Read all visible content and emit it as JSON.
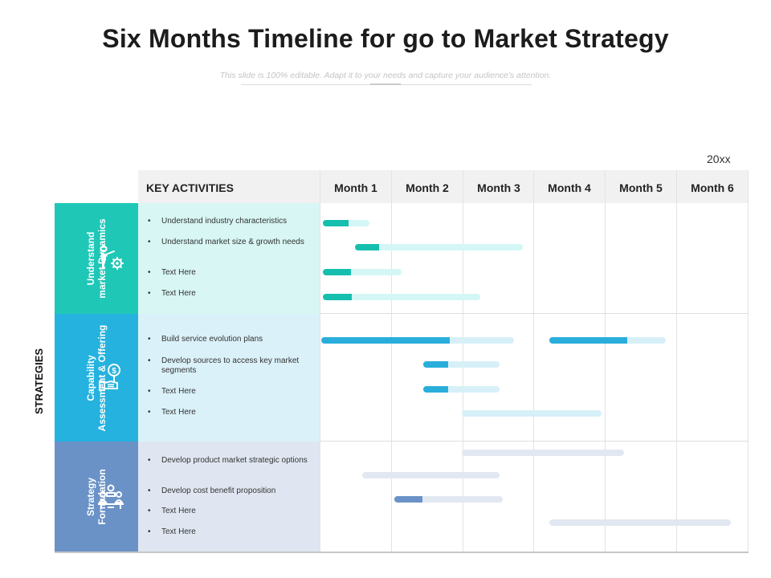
{
  "title": "Six Months Timeline for go to Market Strategy",
  "subtitle": "This slide is 100% editable. Adapt it to your needs and capture your audience's attention.",
  "year": "20xx",
  "side_label": "STRATEGIES",
  "header": {
    "key": "KEY ACTIVITIES",
    "months": [
      "Month 1",
      "Month 2",
      "Month 3",
      "Month 4",
      "Month 5",
      "Month 6"
    ]
  },
  "categories": [
    {
      "label": "Understand\nmarket Dynamics",
      "icon": "person-gear-icon",
      "color": "#1fc7b7",
      "light": "#d7f6f4",
      "track": "#d4f7f5",
      "fill": "#15bfae",
      "activities": [
        "Understand industry characteristics",
        "Understand market size & growth needs",
        "Text Here",
        "Text Here"
      ]
    },
    {
      "label": "Capability\nAssessment & Offering",
      "icon": "hand-dollar-icon",
      "color": "#25b2df",
      "light": "#daf1f9",
      "track": "#d7f0f8",
      "fill": "#29aedb",
      "activities": [
        "Build service evolution plans",
        "Develop sources to access key market segments",
        "Text Here",
        "Text Here"
      ]
    },
    {
      "label": "Strategy\nFormulation",
      "icon": "team-meeting-icon",
      "color": "#6a92c7",
      "light": "#dfe6f1",
      "track": "#e2e8f1",
      "fill": "#6a92c7",
      "activities": [
        "Develop product market strategic options",
        "Develop cost benefit proposition",
        "Text Here",
        "Text Here"
      ]
    }
  ],
  "gantt": [
    {
      "cat": 0,
      "row": 0,
      "start": 0.05,
      "end": 0.7,
      "progress": 0.55
    },
    {
      "cat": 0,
      "row": 1,
      "start": 0.5,
      "end": 2.85,
      "progress": 0.14
    },
    {
      "cat": 0,
      "row": 2,
      "start": 0.05,
      "end": 1.15,
      "progress": 0.35
    },
    {
      "cat": 0,
      "row": 3,
      "start": 0.05,
      "end": 2.25,
      "progress": 0.18
    },
    {
      "cat": 1,
      "row": 0,
      "start": 0.02,
      "end": 2.72,
      "progress": 0.67
    },
    {
      "cat": 1,
      "row": 0,
      "start": 3.22,
      "end": 4.85,
      "progress": 0.67
    },
    {
      "cat": 1,
      "row": 1,
      "start": 1.45,
      "end": 2.52,
      "progress": 0.33
    },
    {
      "cat": 1,
      "row": 2,
      "start": 1.45,
      "end": 2.52,
      "progress": 0.33
    },
    {
      "cat": 1,
      "row": 3,
      "start": 1.99,
      "end": 3.95,
      "progress": 0
    },
    {
      "cat": 2,
      "row": 0,
      "start": 1.99,
      "end": 4.27,
      "progress": 0
    },
    {
      "cat": 2,
      "row": 1,
      "start": 0.6,
      "end": 2.52,
      "progress": 0
    },
    {
      "cat": 2,
      "row": 2,
      "start": 1.05,
      "end": 2.57,
      "progress": 0.26
    },
    {
      "cat": 2,
      "row": 3,
      "start": 3.22,
      "end": 5.77,
      "progress": 0
    }
  ]
}
